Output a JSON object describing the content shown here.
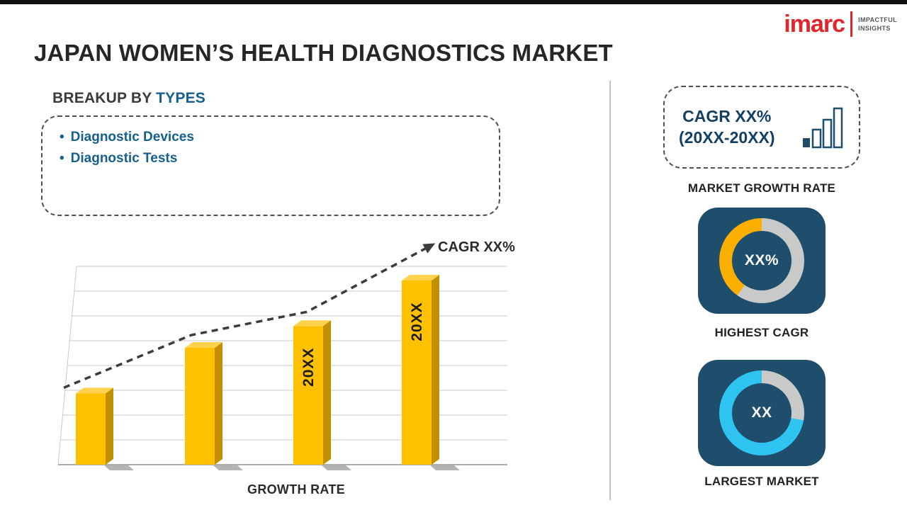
{
  "title": "JAPAN WOMEN’S HEALTH DIAGNOSTICS MARKET",
  "logo": {
    "brand": "imarc",
    "tagline_line1": "IMPACTFUL",
    "tagline_line2": "INSIGHTS"
  },
  "breakup": {
    "heading_prefix": "BREAKUP BY",
    "heading_accent": "TYPES",
    "items": [
      "Diagnostic Devices",
      "Diagnostic Tests"
    ]
  },
  "chart_data": [
    {
      "type": "bar",
      "title": "",
      "categories": [
        "",
        "",
        "",
        ""
      ],
      "values": [
        36,
        59,
        70,
        93
      ],
      "bar_labels": [
        "",
        "",
        "20XX",
        "20XX"
      ],
      "xlabel": "GROWTH RATE",
      "ylabel": "",
      "ylim": [
        0,
        100
      ],
      "grid": true,
      "trend_label": "CAGR XX%",
      "trend_style": "dashed-arrow-up"
    },
    {
      "type": "pie",
      "name": "highest-cagr-donut",
      "center_label": "XX%",
      "segments": [
        {
          "name": "highlight",
          "pct": 40
        },
        {
          "name": "remainder",
          "pct": 60
        }
      ]
    },
    {
      "type": "pie",
      "name": "largest-market-donut",
      "center_label": "XX",
      "segments": [
        {
          "name": "highlight",
          "pct": 72
        },
        {
          "name": "remainder",
          "pct": 28
        }
      ]
    }
  ],
  "sidebar": {
    "cagr_box": {
      "line1": "CAGR XX%",
      "line2": "(20XX-20XX)"
    },
    "market_growth_label": "MARKET GROWTH RATE",
    "highest_cagr": {
      "value": "XX%",
      "label": "HIGHEST CAGR",
      "accent": "#f9ae00",
      "accent_deg": 145
    },
    "largest_market": {
      "value": "XX",
      "label": "LARGEST MARKET",
      "accent": "#2fc3f2",
      "accent_deg": 260
    }
  },
  "colors": {
    "accent_blue": "#15608f",
    "navy_card": "#1f4e6d",
    "bar_gold": "#ffc000",
    "bar_gold_dark": "#c28f00",
    "bar_gold_top": "#ffd24d",
    "ring_gray": "#c9c9c9",
    "brand_red": "#e0262c",
    "trend_dark": "#3c3c3c",
    "grid_gray": "#c9c9c9",
    "shadow_gray": "#9b9b9b"
  }
}
